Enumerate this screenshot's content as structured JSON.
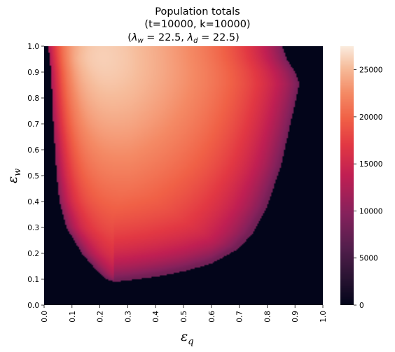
{
  "chart_data": {
    "type": "heatmap",
    "title_lines": [
      "Population totals",
      "(t=10000, k=10000)",
      "(λw = 22.5, λd = 22.5)"
    ],
    "xlabel": "ε",
    "xlabel_sub": "q",
    "ylabel": "ε",
    "ylabel_sub": "w",
    "xlim": [
      0.0,
      1.0
    ],
    "ylim": [
      0.0,
      1.0
    ],
    "x_ticks": [
      "0.0",
      "0.1",
      "0.2",
      "0.3",
      "0.4",
      "0.5",
      "0.6",
      "0.7",
      "0.8",
      "0.9",
      "1.0"
    ],
    "y_ticks": [
      "0.0",
      "0.1",
      "0.2",
      "0.3",
      "0.4",
      "0.5",
      "0.6",
      "0.7",
      "0.8",
      "0.9",
      "1.0"
    ],
    "grid_resolution": 200,
    "colormap": "rocket",
    "colorbar": {
      "min": 0,
      "max": 27500,
      "ticks": [
        0,
        5000,
        10000,
        15000,
        20000,
        25000
      ],
      "tick_labels": [
        "0",
        "5000",
        "10000",
        "15000",
        "20000",
        "25000"
      ]
    },
    "viable_region_boundary": {
      "left_edge": [
        {
          "y": 1.0,
          "x": 0.015
        },
        {
          "y": 0.9,
          "x": 0.025
        },
        {
          "y": 0.7,
          "x": 0.033
        },
        {
          "y": 0.5,
          "x": 0.045
        },
        {
          "y": 0.4,
          "x": 0.055
        },
        {
          "y": 0.3,
          "x": 0.08
        },
        {
          "y": 0.2,
          "x": 0.135
        },
        {
          "y": 0.15,
          "x": 0.175
        },
        {
          "y": 0.12,
          "x": 0.2
        },
        {
          "y": 0.1,
          "x": 0.225
        },
        {
          "y": 0.09,
          "x": 0.25
        }
      ],
      "lower_edge": [
        {
          "x": 0.25,
          "y": 0.09
        },
        {
          "x": 0.3,
          "y": 0.095
        },
        {
          "x": 0.4,
          "y": 0.11
        },
        {
          "x": 0.5,
          "y": 0.13
        },
        {
          "x": 0.6,
          "y": 0.16
        },
        {
          "x": 0.7,
          "y": 0.22
        },
        {
          "x": 0.75,
          "y": 0.28
        },
        {
          "x": 0.8,
          "y": 0.38
        },
        {
          "x": 0.85,
          "y": 0.54
        },
        {
          "x": 0.89,
          "y": 0.73
        },
        {
          "x": 0.915,
          "y": 0.855
        }
      ],
      "upper_right_edge": [
        {
          "y": 0.855,
          "x": 0.915
        },
        {
          "y": 0.9,
          "x": 0.9
        },
        {
          "y": 0.95,
          "x": 0.87
        },
        {
          "y": 1.0,
          "x": 0.855
        }
      ]
    },
    "peak": {
      "x": 0.12,
      "y": 0.95,
      "value": 27500
    }
  }
}
